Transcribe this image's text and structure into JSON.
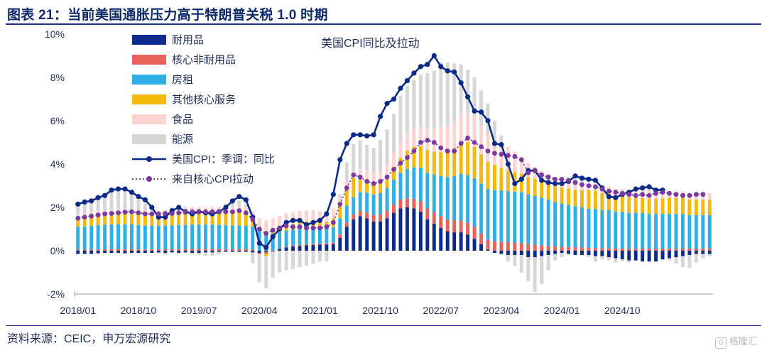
{
  "figure": {
    "title": "图表 21：当前美国通胀压力高于特朗普关税 1.0 时期",
    "source": "资料来源：CEIC，申万宏源研究",
    "watermark_text": "格隆汇",
    "watermark_mark": "G"
  },
  "chart_data": {
    "type": "bar",
    "title": "美国CPI同比及拉动",
    "stacked": true,
    "ylim": [
      -2,
      10
    ],
    "yticks": [
      -2,
      0,
      2,
      4,
      6,
      8,
      10
    ],
    "ytick_labels": [
      "-2%",
      "0%",
      "2%",
      "4%",
      "6%",
      "8%",
      "10%"
    ],
    "xtick_labels": [
      "2018/01",
      "2018/10",
      "2019/07",
      "2020/04",
      "2021/01",
      "2021/10",
      "2022/07",
      "2023/04",
      "2024/01",
      "2024/10"
    ],
    "start_month": "2018/01",
    "legend_position": "top-left",
    "series": [
      {
        "name": "耐用品",
        "kind": "bar",
        "color": "#0e2a8a",
        "values": [
          -0.15,
          -0.15,
          -0.15,
          -0.12,
          -0.1,
          -0.1,
          -0.1,
          -0.12,
          -0.1,
          -0.1,
          -0.1,
          -0.1,
          -0.08,
          -0.1,
          -0.08,
          -0.1,
          -0.08,
          -0.1,
          -0.1,
          -0.08,
          -0.08,
          -0.05,
          -0.05,
          -0.05,
          -0.05,
          -0.05,
          -0.08,
          -0.1,
          -0.05,
          0.0,
          0.08,
          0.15,
          0.2,
          0.22,
          0.25,
          0.27,
          0.28,
          0.28,
          0.3,
          0.6,
          1.1,
          1.45,
          1.6,
          1.5,
          1.35,
          1.35,
          1.5,
          1.75,
          1.95,
          2.0,
          1.95,
          1.8,
          1.45,
          1.25,
          1.05,
          0.9,
          0.85,
          0.85,
          0.75,
          0.55,
          0.3,
          0.05,
          -0.1,
          -0.15,
          -0.2,
          -0.2,
          -0.2,
          -0.3,
          -0.3,
          -0.25,
          -0.2,
          -0.15,
          -0.1,
          -0.15,
          -0.2,
          -0.2,
          -0.2,
          -0.25,
          -0.25,
          -0.3,
          -0.35,
          -0.4,
          -0.45,
          -0.45,
          -0.5,
          -0.5,
          -0.5,
          -0.4,
          -0.35,
          -0.3,
          -0.25,
          -0.2,
          -0.15,
          -0.15,
          -0.15
        ]
      },
      {
        "name": "核心非耐用品",
        "kind": "bar",
        "color": "#e8625a",
        "values": [
          0.05,
          0.05,
          0.06,
          0.06,
          0.07,
          0.07,
          0.07,
          0.07,
          0.07,
          0.06,
          0.06,
          0.06,
          0.06,
          0.07,
          0.07,
          0.07,
          0.07,
          0.08,
          0.08,
          0.08,
          0.08,
          0.07,
          0.07,
          0.07,
          0.07,
          0.07,
          0.05,
          -0.05,
          -0.08,
          -0.05,
          0.0,
          0.03,
          0.05,
          0.05,
          0.05,
          0.05,
          0.06,
          0.06,
          0.07,
          0.15,
          0.2,
          0.22,
          0.25,
          0.28,
          0.3,
          0.32,
          0.35,
          0.38,
          0.4,
          0.42,
          0.45,
          0.48,
          0.5,
          0.52,
          0.55,
          0.55,
          0.55,
          0.55,
          0.55,
          0.55,
          0.5,
          0.45,
          0.45,
          0.42,
          0.4,
          0.38,
          0.35,
          0.3,
          0.28,
          0.25,
          0.22,
          0.2,
          0.18,
          0.17,
          0.16,
          0.15,
          0.14,
          0.13,
          0.12,
          0.12,
          0.11,
          0.1,
          0.1,
          0.1,
          0.1,
          0.1,
          0.1,
          0.1,
          0.1,
          0.1,
          0.1,
          0.1,
          0.1,
          0.1,
          0.1
        ]
      },
      {
        "name": "房租",
        "kind": "bar",
        "color": "#2eb0e6",
        "values": [
          1.05,
          1.07,
          1.1,
          1.12,
          1.13,
          1.14,
          1.15,
          1.15,
          1.15,
          1.13,
          1.1,
          1.1,
          1.1,
          1.1,
          1.1,
          1.12,
          1.12,
          1.13,
          1.13,
          1.13,
          1.12,
          1.12,
          1.12,
          1.1,
          1.1,
          1.08,
          1.05,
          0.95,
          0.85,
          0.8,
          0.78,
          0.75,
          0.72,
          0.72,
          0.7,
          0.7,
          0.7,
          0.7,
          0.72,
          0.75,
          0.78,
          0.8,
          0.85,
          0.9,
          0.95,
          1.0,
          1.05,
          1.15,
          1.25,
          1.35,
          1.45,
          1.55,
          1.65,
          1.75,
          1.85,
          1.95,
          2.05,
          2.15,
          2.2,
          2.25,
          2.3,
          2.35,
          2.35,
          2.35,
          2.35,
          2.35,
          2.35,
          2.3,
          2.25,
          2.2,
          2.15,
          2.05,
          2.0,
          1.95,
          1.9,
          1.85,
          1.8,
          1.8,
          1.75,
          1.75,
          1.7,
          1.7,
          1.65,
          1.65,
          1.65,
          1.6,
          1.6,
          1.6,
          1.6,
          1.6,
          1.6,
          1.55,
          1.55,
          1.55,
          1.55
        ]
      },
      {
        "name": "其他核心服务",
        "kind": "bar",
        "color": "#f5b80c",
        "values": [
          0.4,
          0.42,
          0.45,
          0.45,
          0.47,
          0.48,
          0.5,
          0.5,
          0.5,
          0.48,
          0.48,
          0.47,
          0.45,
          0.46,
          0.48,
          0.5,
          0.52,
          0.55,
          0.55,
          0.55,
          0.57,
          0.58,
          0.58,
          0.6,
          0.62,
          0.6,
          0.4,
          0.1,
          -0.1,
          0.1,
          0.2,
          0.25,
          0.25,
          0.3,
          0.35,
          0.35,
          0.3,
          0.3,
          0.4,
          0.6,
          0.8,
          0.9,
          0.75,
          0.6,
          0.5,
          0.5,
          0.55,
          0.6,
          0.7,
          0.85,
          0.95,
          1.0,
          1.05,
          1.05,
          1.1,
          1.2,
          1.3,
          1.45,
          1.5,
          1.45,
          1.35,
          1.25,
          1.15,
          1.05,
          0.95,
          0.9,
          0.85,
          0.8,
          0.78,
          0.8,
          0.78,
          0.75,
          0.75,
          0.75,
          0.75,
          0.8,
          0.85,
          0.85,
          0.8,
          0.8,
          0.75,
          0.75,
          0.72,
          0.7,
          0.68,
          0.68,
          0.7,
          0.72,
          0.75,
          0.75,
          0.75,
          0.72,
          0.72,
          0.7,
          0.7
        ]
      },
      {
        "name": "食品",
        "kind": "bar",
        "color": "#fcd3d1",
        "values": [
          0.2,
          0.2,
          0.2,
          0.2,
          0.2,
          0.2,
          0.2,
          0.2,
          0.2,
          0.2,
          0.2,
          0.2,
          0.25,
          0.25,
          0.25,
          0.25,
          0.25,
          0.25,
          0.25,
          0.25,
          0.25,
          0.25,
          0.25,
          0.25,
          0.28,
          0.28,
          0.3,
          0.45,
          0.55,
          0.6,
          0.55,
          0.55,
          0.55,
          0.55,
          0.5,
          0.5,
          0.5,
          0.5,
          0.45,
          0.3,
          0.3,
          0.3,
          0.35,
          0.4,
          0.45,
          0.5,
          0.55,
          0.65,
          0.75,
          0.8,
          0.85,
          0.9,
          1.0,
          1.05,
          1.15,
          1.2,
          1.25,
          1.3,
          1.35,
          1.4,
          1.35,
          1.3,
          1.25,
          1.2,
          1.1,
          0.95,
          0.8,
          0.65,
          0.55,
          0.45,
          0.4,
          0.35,
          0.35,
          0.32,
          0.3,
          0.3,
          0.3,
          0.3,
          0.3,
          0.3,
          0.3,
          0.3,
          0.3,
          0.3,
          0.3,
          0.28,
          0.28,
          0.28,
          0.28,
          0.28,
          0.3,
          0.3,
          0.3,
          0.3,
          0.3
        ]
      },
      {
        "name": "能源",
        "kind": "bar",
        "color": "#d6d6d6",
        "values": [
          0.45,
          0.5,
          0.5,
          0.6,
          0.7,
          0.8,
          0.8,
          0.8,
          0.7,
          0.5,
          0.35,
          0.05,
          -0.05,
          -0.1,
          0.1,
          0.15,
          0.05,
          -0.05,
          -0.1,
          -0.15,
          -0.15,
          -0.1,
          0.15,
          0.35,
          0.25,
          0.1,
          -0.5,
          -1.3,
          -1.5,
          -1.2,
          -1.0,
          -0.9,
          -0.85,
          -0.75,
          -0.7,
          -0.6,
          -0.5,
          -0.5,
          0.0,
          0.2,
          0.9,
          1.25,
          1.3,
          1.2,
          1.2,
          1.45,
          1.6,
          1.8,
          2.1,
          2.2,
          2.25,
          2.4,
          2.55,
          2.7,
          3.0,
          2.9,
          2.65,
          2.3,
          2.0,
          1.8,
          1.6,
          1.4,
          0.8,
          0.3,
          -0.3,
          -0.5,
          -0.8,
          -1.1,
          -1.6,
          -1.3,
          -0.7,
          -0.3,
          -0.2,
          0.1,
          0.2,
          0.15,
          -0.1,
          -0.25,
          -0.15,
          -0.15,
          -0.2,
          -0.1,
          -0.1,
          0.1,
          0.2,
          0.15,
          0.1,
          0.0,
          -0.1,
          -0.3,
          -0.5,
          -0.6,
          -0.4,
          -0.2,
          -0.1
        ]
      },
      {
        "name": "美国CPI：季调：同比",
        "kind": "line",
        "color": "#0c2a8a",
        "values": [
          2.15,
          2.25,
          2.3,
          2.45,
          2.55,
          2.8,
          2.85,
          2.85,
          2.7,
          2.5,
          2.35,
          2.0,
          1.55,
          1.55,
          1.85,
          2.0,
          1.8,
          1.7,
          1.8,
          1.75,
          1.7,
          1.8,
          2.0,
          2.3,
          2.5,
          2.35,
          1.55,
          0.35,
          0.15,
          0.65,
          1.0,
          1.3,
          1.4,
          1.4,
          1.2,
          1.3,
          1.4,
          1.7,
          2.6,
          4.2,
          4.95,
          5.35,
          5.35,
          5.3,
          5.35,
          6.2,
          6.8,
          7.0,
          7.5,
          7.85,
          8.2,
          8.5,
          8.6,
          9.0,
          8.5,
          8.3,
          8.25,
          7.75,
          7.1,
          6.45,
          6.4,
          6.0,
          4.95,
          4.9,
          4.0,
          3.1,
          3.3,
          3.7,
          3.7,
          3.25,
          3.15,
          3.1,
          3.1,
          3.2,
          3.45,
          3.35,
          3.3,
          3.25,
          2.9,
          2.5,
          2.45,
          2.6,
          2.7,
          2.85,
          2.9,
          2.95,
          2.8,
          2.8
        ]
      },
      {
        "name": "来自核心CPI拉动",
        "kind": "dotted-line",
        "color": "#7a3aa0",
        "values": [
          1.5,
          1.55,
          1.6,
          1.65,
          1.7,
          1.72,
          1.75,
          1.78,
          1.8,
          1.75,
          1.7,
          1.7,
          1.7,
          1.72,
          1.72,
          1.75,
          1.78,
          1.8,
          1.8,
          1.8,
          1.8,
          1.8,
          1.8,
          1.8,
          1.85,
          1.75,
          1.45,
          1.0,
          0.8,
          0.95,
          1.05,
          1.15,
          1.1,
          1.1,
          1.05,
          1.05,
          1.05,
          1.1,
          1.3,
          2.15,
          2.9,
          3.5,
          3.4,
          3.2,
          3.1,
          3.2,
          3.4,
          3.75,
          4.05,
          4.3,
          4.6,
          5.0,
          5.1,
          5.0,
          4.75,
          4.6,
          4.6,
          4.95,
          5.2,
          5.0,
          4.8,
          4.6,
          4.5,
          4.45,
          4.4,
          4.35,
          4.2,
          3.6,
          3.7,
          3.5,
          3.4,
          3.3,
          3.3,
          3.25,
          3.15,
          3.05,
          3.0,
          2.95,
          2.85,
          2.75,
          2.7,
          2.65,
          2.6,
          2.55,
          2.6,
          2.55,
          2.65,
          2.7,
          2.65,
          2.6,
          2.55,
          2.55,
          2.6,
          2.6
        ]
      }
    ]
  }
}
